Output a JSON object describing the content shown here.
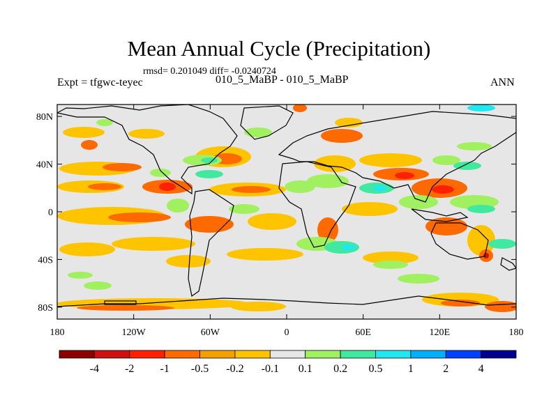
{
  "chart_data": {
    "type": "heatmap",
    "title": "Mean Annual Cycle (Precipitation)",
    "stats_text": "rmsd= 0.201049 diff= -0.0240724",
    "left_label": "Expt = tfgwc-teyec",
    "center_label": "010_5_MaBP - 010_5_MaBP",
    "right_label": "ANN",
    "x_ticks": [
      "180",
      "120W",
      "60W",
      "0",
      "60E",
      "120E",
      "180"
    ],
    "y_ticks": [
      "80N",
      "40N",
      "0",
      "40S",
      "80S"
    ],
    "xlim": [
      -180,
      180
    ],
    "ylim": [
      -90,
      90
    ],
    "colorbar": {
      "labels": [
        "-4",
        "-2",
        "-1",
        "-0.5",
        "-0.2",
        "-0.1",
        "0.1",
        "0.2",
        "0.5",
        "1",
        "2",
        "4"
      ],
      "colors": [
        "#8c0000",
        "#d01010",
        "#ff2000",
        "#ff6a00",
        "#f5a000",
        "#ffc400",
        "#e6e6e6",
        "#a0f060",
        "#40e8a0",
        "#20e8f0",
        "#00b0ff",
        "#0040ff",
        "#000090"
      ]
    },
    "background_color": "#e6e6e6"
  }
}
